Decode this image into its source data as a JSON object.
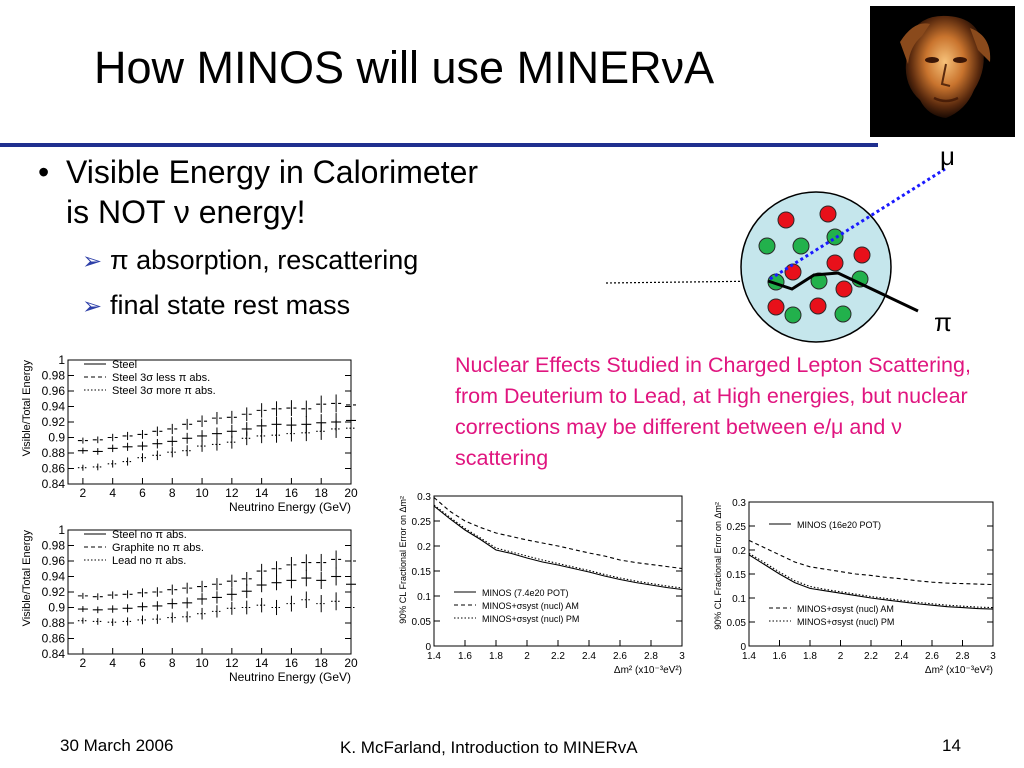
{
  "slide": {
    "title": "How MINOS will use MINERνA",
    "bullet_symbol": "•",
    "bullet_main_line1": "Visible Energy in Calorimeter",
    "bullet_main_line2": "is NOT ν energy!",
    "sub_bullet_symbol": "➢",
    "sub_bullets": [
      "π absorption,  rescattering",
      "final state rest mass"
    ],
    "note": "Nuclear Effects Studied in Charged Lepton Scattering, from Deuterium to Lead, at High energies, but nuclear corrections may be different between e/μ and ν scattering",
    "diagram": {
      "muon_label": "μ",
      "pion_label": "π"
    },
    "footer": {
      "date": "30 March 2006",
      "author": "K. McFarland, Introduction to MINERvA",
      "page": "14"
    },
    "colors": {
      "title_rule": "#1f2f8f",
      "note_text": "#e0157f",
      "nucleus_fill": "#c5e6ec",
      "proton": "#e8101a",
      "neutron": "#22b14c",
      "muon_track": "#1a1aff"
    }
  },
  "chart_data": [
    {
      "type": "line",
      "xlabel": "Neutrino Energy (GeV)",
      "ylabel": "Visible/Total Energy",
      "xlim": [
        1,
        20
      ],
      "ylim": [
        0.84,
        1.0
      ],
      "xticks": [
        "2",
        "4",
        "6",
        "8",
        "10",
        "12",
        "14",
        "16",
        "18",
        "20"
      ],
      "yticks": [
        "0.84",
        "0.86",
        "0.88",
        "0.9",
        "0.92",
        "0.94",
        "0.96",
        "0.98",
        "1"
      ],
      "x": [
        2,
        3,
        4,
        5,
        6,
        7,
        8,
        9,
        10,
        11,
        12,
        13,
        14,
        15,
        16,
        17,
        18,
        19,
        20
      ],
      "series": [
        {
          "name": "Steel",
          "style": "solid",
          "values": [
            0.883,
            0.882,
            0.886,
            0.888,
            0.889,
            0.892,
            0.895,
            0.899,
            0.902,
            0.905,
            0.908,
            0.911,
            0.915,
            0.917,
            0.916,
            0.917,
            0.919,
            0.92,
            0.922
          ]
        },
        {
          "name": "Steel 3σ less π abs.",
          "style": "dashed",
          "values": [
            0.896,
            0.897,
            0.9,
            0.902,
            0.904,
            0.908,
            0.911,
            0.917,
            0.921,
            0.925,
            0.926,
            0.93,
            0.935,
            0.937,
            0.938,
            0.937,
            0.943,
            0.944,
            0.942
          ]
        },
        {
          "name": "Steel 3σ more π abs.",
          "style": "dotted",
          "values": [
            0.861,
            0.862,
            0.866,
            0.869,
            0.874,
            0.877,
            0.881,
            0.883,
            0.889,
            0.891,
            0.894,
            0.899,
            0.902,
            0.903,
            0.905,
            0.906,
            0.908,
            0.911,
            0.912
          ]
        }
      ]
    },
    {
      "type": "line",
      "xlabel": "Neutrino Energy (GeV)",
      "ylabel": "Visible/Total Energy",
      "xlim": [
        1,
        20
      ],
      "ylim": [
        0.84,
        1.0
      ],
      "xticks": [
        "2",
        "4",
        "6",
        "8",
        "10",
        "12",
        "14",
        "16",
        "18",
        "20"
      ],
      "yticks": [
        "0.84",
        "0.86",
        "0.88",
        "0.9",
        "0.92",
        "0.94",
        "0.96",
        "0.98",
        "1"
      ],
      "x": [
        2,
        3,
        4,
        5,
        6,
        7,
        8,
        9,
        10,
        11,
        12,
        13,
        14,
        15,
        16,
        17,
        18,
        19,
        20
      ],
      "series": [
        {
          "name": "Steel no π abs.",
          "style": "solid",
          "values": [
            0.898,
            0.897,
            0.898,
            0.899,
            0.901,
            0.902,
            0.905,
            0.906,
            0.911,
            0.913,
            0.917,
            0.921,
            0.929,
            0.932,
            0.935,
            0.938,
            0.935,
            0.94,
            0.93
          ]
        },
        {
          "name": "Graphite no π abs.",
          "style": "dashed",
          "values": [
            0.915,
            0.914,
            0.916,
            0.917,
            0.919,
            0.92,
            0.923,
            0.925,
            0.927,
            0.93,
            0.934,
            0.937,
            0.947,
            0.95,
            0.955,
            0.958,
            0.958,
            0.962,
            0.96
          ]
        },
        {
          "name": "Lead no π abs.",
          "style": "dotted",
          "values": [
            0.883,
            0.882,
            0.881,
            0.882,
            0.884,
            0.885,
            0.887,
            0.888,
            0.892,
            0.895,
            0.899,
            0.9,
            0.903,
            0.9,
            0.905,
            0.91,
            0.905,
            0.908,
            0.9
          ]
        }
      ]
    },
    {
      "type": "line",
      "xlabel": "Δm² (x10⁻³eV²)",
      "ylabel": "90% CL Fractional Error on Δm²",
      "xlim": [
        1.4,
        3.0
      ],
      "ylim": [
        0,
        0.3
      ],
      "xticks": [
        "1.4",
        "1.6",
        "1.8",
        "2",
        "2.2",
        "2.4",
        "2.6",
        "2.8",
        "3"
      ],
      "yticks": [
        "0",
        "0.05",
        "0.1",
        "0.15",
        "0.2",
        "0.25",
        "0.3"
      ],
      "x": [
        1.4,
        1.5,
        1.6,
        1.7,
        1.8,
        1.9,
        2.0,
        2.1,
        2.2,
        2.3,
        2.4,
        2.5,
        2.6,
        2.7,
        2.8,
        2.9,
        3.0
      ],
      "series": [
        {
          "name": "MINOS (7.4e20 POT)",
          "style": "solid",
          "values": [
            0.28,
            0.255,
            0.232,
            0.213,
            0.192,
            0.185,
            0.176,
            0.168,
            0.162,
            0.155,
            0.148,
            0.14,
            0.133,
            0.127,
            0.122,
            0.117,
            0.113
          ]
        },
        {
          "name": "MINOS+σsyst (nucl) AM",
          "style": "dashed",
          "values": [
            0.297,
            0.27,
            0.25,
            0.237,
            0.226,
            0.219,
            0.212,
            0.206,
            0.2,
            0.193,
            0.186,
            0.18,
            0.172,
            0.167,
            0.163,
            0.159,
            0.155
          ]
        },
        {
          "name": "MINOS+σsyst (nucl) PM",
          "style": "dotted",
          "values": [
            0.282,
            0.258,
            0.235,
            0.216,
            0.196,
            0.188,
            0.18,
            0.172,
            0.165,
            0.158,
            0.151,
            0.143,
            0.136,
            0.13,
            0.125,
            0.12,
            0.116
          ]
        }
      ]
    },
    {
      "type": "line",
      "xlabel": "Δm² (x10⁻³eV²)",
      "ylabel": "90% CL Fractional Error on Δm²",
      "xlim": [
        1.4,
        3.0
      ],
      "ylim": [
        0,
        0.3
      ],
      "xticks": [
        "1.4",
        "1.6",
        "1.8",
        "2",
        "2.2",
        "2.4",
        "2.6",
        "2.8",
        "3"
      ],
      "yticks": [
        "0",
        "0.05",
        "0.1",
        "0.15",
        "0.2",
        "0.25",
        "0.3"
      ],
      "x": [
        1.4,
        1.5,
        1.6,
        1.7,
        1.8,
        1.9,
        2.0,
        2.1,
        2.2,
        2.3,
        2.4,
        2.5,
        2.6,
        2.7,
        2.8,
        2.9,
        3.0
      ],
      "series": [
        {
          "name": "MINOS (16e20 POT)",
          "style": "solid",
          "values": [
            0.19,
            0.17,
            0.15,
            0.132,
            0.12,
            0.115,
            0.11,
            0.105,
            0.1,
            0.096,
            0.092,
            0.088,
            0.085,
            0.082,
            0.08,
            0.078,
            0.077
          ]
        },
        {
          "name": "MINOS+σsyst (nucl) AM",
          "style": "dashed",
          "values": [
            0.22,
            0.205,
            0.19,
            0.175,
            0.165,
            0.16,
            0.155,
            0.15,
            0.147,
            0.143,
            0.14,
            0.136,
            0.133,
            0.131,
            0.13,
            0.129,
            0.128
          ]
        },
        {
          "name": "MINOS+σsyst (nucl) PM",
          "style": "dotted",
          "values": [
            0.193,
            0.174,
            0.154,
            0.136,
            0.124,
            0.118,
            0.113,
            0.108,
            0.103,
            0.099,
            0.095,
            0.091,
            0.088,
            0.085,
            0.083,
            0.081,
            0.08
          ]
        }
      ]
    }
  ]
}
